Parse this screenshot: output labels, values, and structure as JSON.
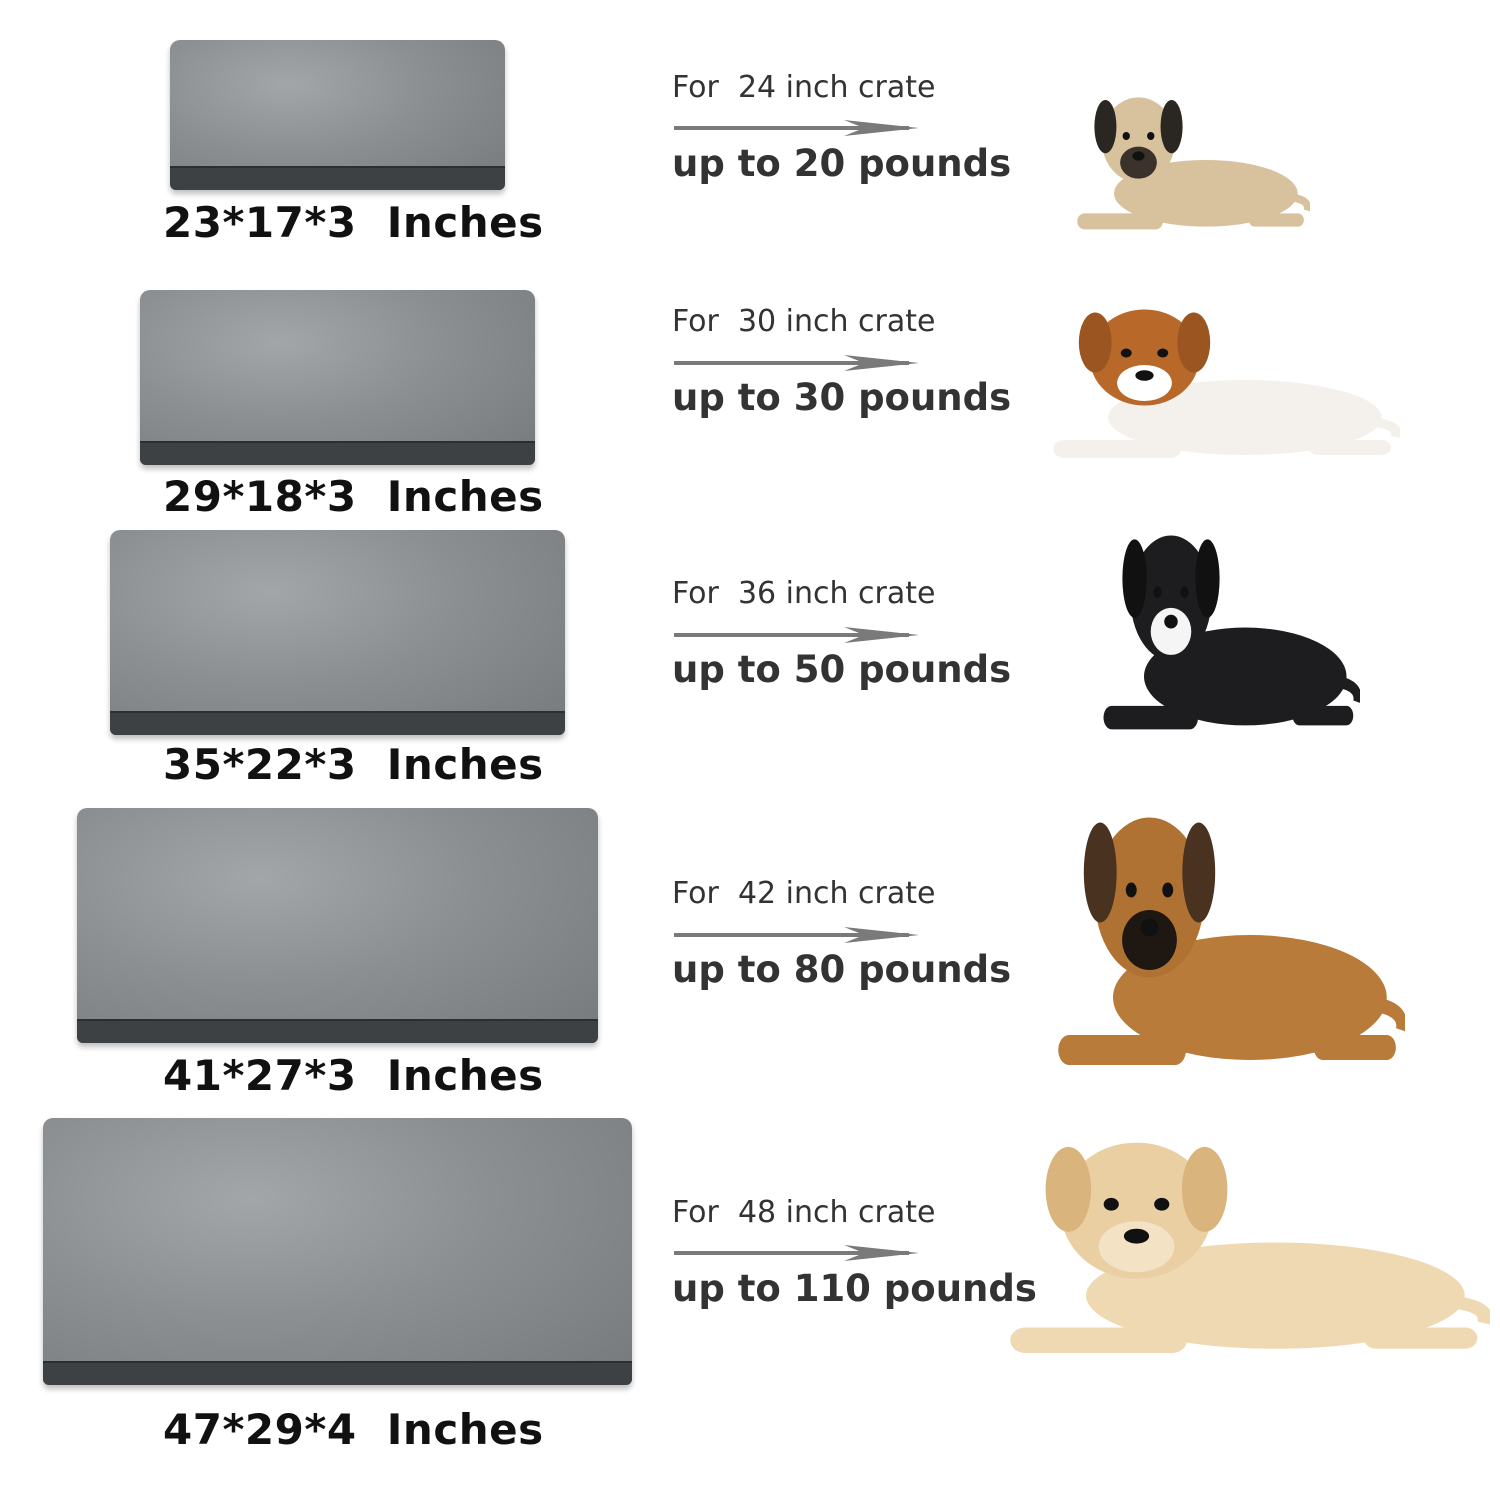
{
  "rows": [
    {
      "size": "23*17*3  Inches",
      "crate": "For  24 inch crate",
      "weight": "up to 20 pounds",
      "dog": {
        "breed_icon": "pug-icon",
        "body": "#d8c29e",
        "head": "#d8c29e",
        "ears": "#2a2622",
        "face": "#3a322b"
      }
    },
    {
      "size": "29*18*3  Inches",
      "crate": "For  30 inch crate",
      "weight": "up to 30 pounds",
      "dog": {
        "breed_icon": "beagle-icon",
        "body": "#f4f1ec",
        "head": "#b8692a",
        "ears": "#9a5520",
        "face": "#ffffff"
      }
    },
    {
      "size": "35*22*3  Inches",
      "crate": "For  36 inch crate",
      "weight": "up to 50 pounds",
      "dog": {
        "breed_icon": "border-collie-icon",
        "body": "#1d1d1f",
        "head": "#1d1d1f",
        "ears": "#111111",
        "face": "#f5f5f5"
      }
    },
    {
      "size": "41*27*3  Inches",
      "crate": "For  42 inch crate",
      "weight": "up to 80 pounds",
      "dog": {
        "breed_icon": "german-shepherd-icon",
        "body": "#b87b3a",
        "head": "#b07232",
        "ears": "#4a3220",
        "face": "#1e1712"
      }
    },
    {
      "size": "47*29*4  Inches",
      "crate": "For  48 inch crate",
      "weight": "up to 110 pounds",
      "dog": {
        "breed_icon": "labrador-icon",
        "body": "#efd9b3",
        "head": "#e9cfa2",
        "ears": "#d9b47c",
        "face": "#f3e2c4"
      }
    }
  ],
  "colors": {
    "bed_top": "#8c8f92",
    "bed_band": "#3d4143",
    "arrow": "#7a7a7a",
    "text": "#333333"
  }
}
